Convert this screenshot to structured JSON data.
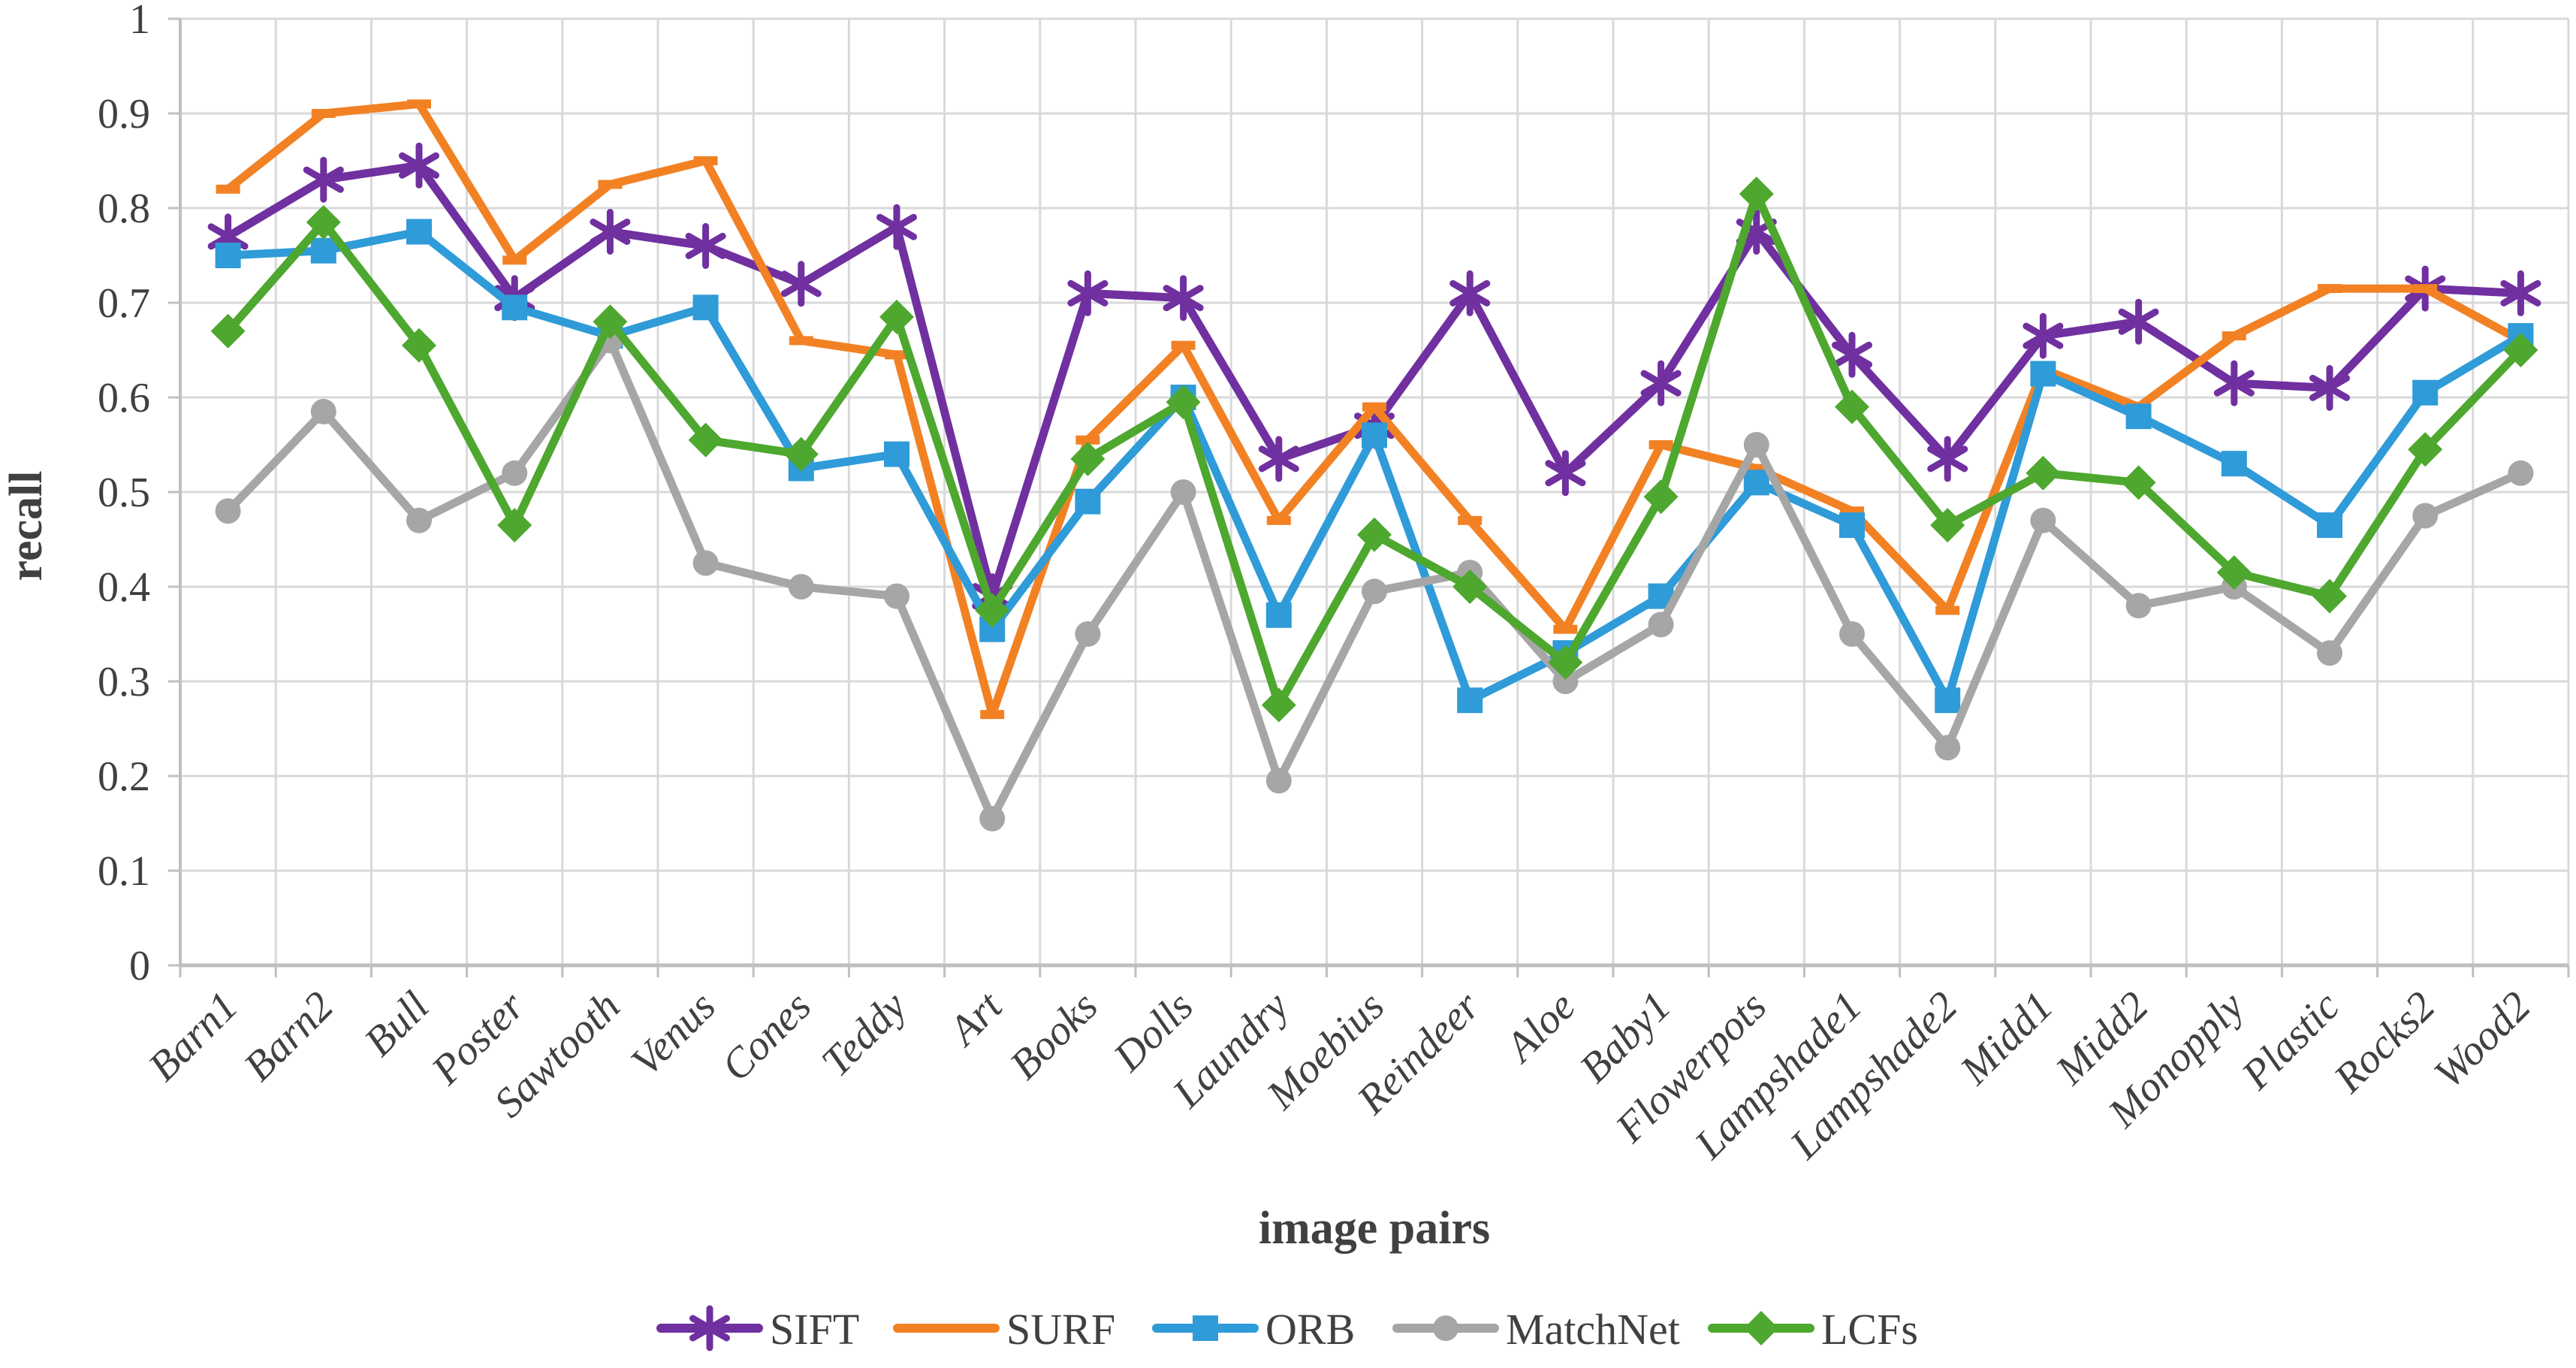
{
  "chart_data": {
    "type": "line",
    "title": "",
    "xlabel": "image pairs",
    "ylabel": "recall",
    "ylim": [
      0,
      1
    ],
    "ytick_step": 0.1,
    "yticklabels": [
      "0",
      "0.1",
      "0.2",
      "0.3",
      "0.4",
      "0.5",
      "0.6",
      "0.7",
      "0.8",
      "0.9",
      "1"
    ],
    "grid": true,
    "legend_position": "bottom",
    "categories": [
      "Barn1",
      "Barn2",
      "Bull",
      "Poster",
      "Sawtooth",
      "Venus",
      "Cones",
      "Teddy",
      "Art",
      "Books",
      "Dolls",
      "Laundry",
      "Moebius",
      "Reindeer",
      "Aloe",
      "Baby1",
      "Flowerpots",
      "Lampshade1",
      "Lampshade2",
      "Midd1",
      "Midd2",
      "Monopply",
      "Plastic",
      "Rocks2",
      "Wood2"
    ],
    "series": [
      {
        "name": "SIFT",
        "color": "#7030A0",
        "marker": "asterisk",
        "values": [
          0.77,
          0.83,
          0.845,
          0.705,
          0.775,
          0.76,
          0.72,
          0.78,
          0.39,
          0.71,
          0.705,
          0.535,
          0.57,
          0.71,
          0.52,
          0.615,
          0.775,
          0.645,
          0.535,
          0.665,
          0.68,
          0.615,
          0.61,
          0.715,
          0.71
        ]
      },
      {
        "name": "SURF",
        "color": "#F28124",
        "marker": "dash",
        "values": [
          0.82,
          0.9,
          0.91,
          0.745,
          0.825,
          0.85,
          0.66,
          0.645,
          0.265,
          0.555,
          0.655,
          0.47,
          0.59,
          0.47,
          0.355,
          0.55,
          0.525,
          0.48,
          0.375,
          0.63,
          0.59,
          0.665,
          0.715,
          0.715,
          0.66
        ]
      },
      {
        "name": "ORB",
        "color": "#2F9BD8",
        "marker": "square",
        "values": [
          0.75,
          0.755,
          0.775,
          0.695,
          0.665,
          0.695,
          0.525,
          0.54,
          0.355,
          0.49,
          0.6,
          0.37,
          0.56,
          0.28,
          0.33,
          0.39,
          0.51,
          0.465,
          0.28,
          0.625,
          0.58,
          0.53,
          0.465,
          0.605,
          0.665
        ]
      },
      {
        "name": "MatchNet",
        "color": "#A6A6A6",
        "marker": "circle",
        "values": [
          0.48,
          0.585,
          0.47,
          0.52,
          0.66,
          0.425,
          0.4,
          0.39,
          0.155,
          0.35,
          0.5,
          0.195,
          0.395,
          0.415,
          0.3,
          0.36,
          0.55,
          0.35,
          0.23,
          0.47,
          0.38,
          0.4,
          0.33,
          0.475,
          0.52
        ]
      },
      {
        "name": "LCFs",
        "color": "#4EA72E",
        "marker": "diamond",
        "values": [
          0.67,
          0.785,
          0.655,
          0.465,
          0.68,
          0.555,
          0.54,
          0.685,
          0.375,
          0.535,
          0.595,
          0.275,
          0.455,
          0.4,
          0.32,
          0.495,
          0.815,
          0.59,
          0.465,
          0.52,
          0.51,
          0.415,
          0.39,
          0.545,
          0.65
        ]
      }
    ],
    "colors": {
      "gridline": "#D9D9D9",
      "axis": "#BFBFBF",
      "text": "#404040"
    }
  }
}
